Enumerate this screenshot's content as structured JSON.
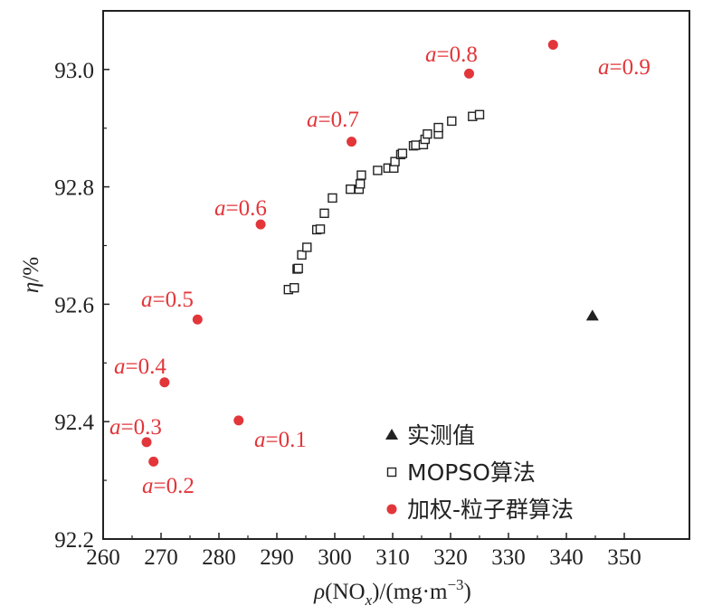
{
  "chart_data": {
    "type": "scatter",
    "xlabel": "ρ(NOx)/(mg·m−3)",
    "ylabel": "η/%",
    "xlim": [
      260,
      355
    ],
    "ylim": [
      92.2,
      93.1
    ],
    "x_ticks": [
      "260",
      "270",
      "280",
      "290",
      "300",
      "310",
      "320",
      "330",
      "340",
      "350"
    ],
    "y_ticks": [
      "92.2",
      "92.4",
      "92.6",
      "92.8",
      "93.0"
    ],
    "grid": false,
    "legend_position": "bottom-right",
    "colors": {
      "red": "#e2363a",
      "black": "#222222"
    },
    "series": [
      {
        "name": "实测值",
        "marker": "triangle",
        "points": [
          [
            344.5,
            92.58
          ]
        ]
      },
      {
        "name": "MOPSO算法",
        "marker": "square",
        "points": [
          [
            292,
            92.625
          ],
          [
            293,
            92.628
          ],
          [
            293.5,
            92.66
          ],
          [
            293.7,
            92.661
          ],
          [
            294.3,
            92.684
          ],
          [
            295.2,
            92.697
          ],
          [
            296.9,
            92.727
          ],
          [
            297.5,
            92.728
          ],
          [
            298.2,
            92.755
          ],
          [
            299.6,
            92.781
          ],
          [
            302.7,
            92.796
          ],
          [
            304.2,
            92.796
          ],
          [
            304.4,
            92.805
          ],
          [
            304.6,
            92.82
          ],
          [
            307.4,
            92.828
          ],
          [
            309.2,
            92.832
          ],
          [
            310.2,
            92.832
          ],
          [
            310.4,
            92.843
          ],
          [
            311.4,
            92.855
          ],
          [
            311.7,
            92.857
          ],
          [
            313.6,
            92.87
          ],
          [
            314.0,
            92.871
          ],
          [
            315.3,
            92.872
          ],
          [
            315.6,
            92.881
          ],
          [
            316.0,
            92.89
          ],
          [
            317.9,
            92.89
          ],
          [
            317.9,
            92.901
          ],
          [
            320.2,
            92.912
          ],
          [
            323.8,
            92.92
          ],
          [
            325.0,
            92.923
          ]
        ]
      },
      {
        "name": "加权-粒子群算法",
        "marker": "circle",
        "points": [
          [
            283.4,
            92.402
          ],
          [
            268.7,
            92.332
          ],
          [
            267.5,
            92.365
          ],
          [
            270.6,
            92.467
          ],
          [
            276.3,
            92.574
          ],
          [
            287.2,
            92.736
          ],
          [
            302.9,
            92.877
          ],
          [
            323.2,
            92.993
          ],
          [
            337.7,
            93.042
          ]
        ]
      }
    ],
    "annotations": [
      {
        "prefix": "a",
        "value": "=0.1"
      },
      {
        "prefix": "a",
        "value": "=0.2"
      },
      {
        "prefix": "a",
        "value": "=0.3"
      },
      {
        "prefix": "a",
        "value": "=0.4"
      },
      {
        "prefix": "a",
        "value": "=0.5"
      },
      {
        "prefix": "a",
        "value": "=0.6"
      },
      {
        "prefix": "a",
        "value": "=0.7"
      },
      {
        "prefix": "a",
        "value": "=0.8"
      },
      {
        "prefix": "a",
        "value": "=0.9"
      }
    ]
  }
}
